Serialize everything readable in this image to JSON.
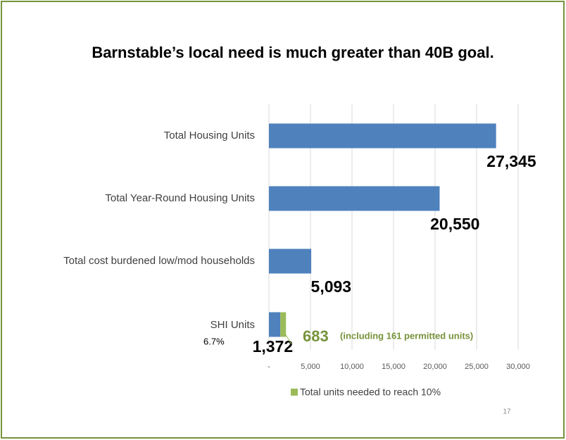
{
  "chart_data": {
    "type": "bar",
    "orientation": "horizontal",
    "stacked": true,
    "title": "Barnstable’s local need is much greater than 40B goal.",
    "categories": [
      "Total Housing Units",
      "Total Year-Round  Housing Units",
      "Total cost burdened low/mod households",
      "SHI Units"
    ],
    "series": [
      {
        "color": "#4f81bd",
        "values": [
          27345,
          20550,
          5093,
          1372
        ],
        "value_labels": [
          "27,345",
          "20,550",
          "5,093",
          "1,372"
        ]
      },
      {
        "name": "Total units needed to reach 10%",
        "color": "#9bbb59",
        "values": [
          null,
          null,
          null,
          683
        ],
        "value_labels": [
          null,
          null,
          null,
          "683"
        ]
      }
    ],
    "annotations": [
      "(including 161 permitted units)",
      "6.7%"
    ],
    "xlim": [
      0,
      30000
    ],
    "xticks": [
      {
        "value": 0,
        "label": "-"
      },
      {
        "value": 5000,
        "label": "5,000"
      },
      {
        "value": 10000,
        "label": "10,000"
      },
      {
        "value": 15000,
        "label": "15,000"
      },
      {
        "value": 20000,
        "label": "20,000"
      },
      {
        "value": 25000,
        "label": "25,000"
      },
      {
        "value": 30000,
        "label": "30,000"
      }
    ],
    "grid": true,
    "legend": "bottom",
    "page_number": "17"
  }
}
